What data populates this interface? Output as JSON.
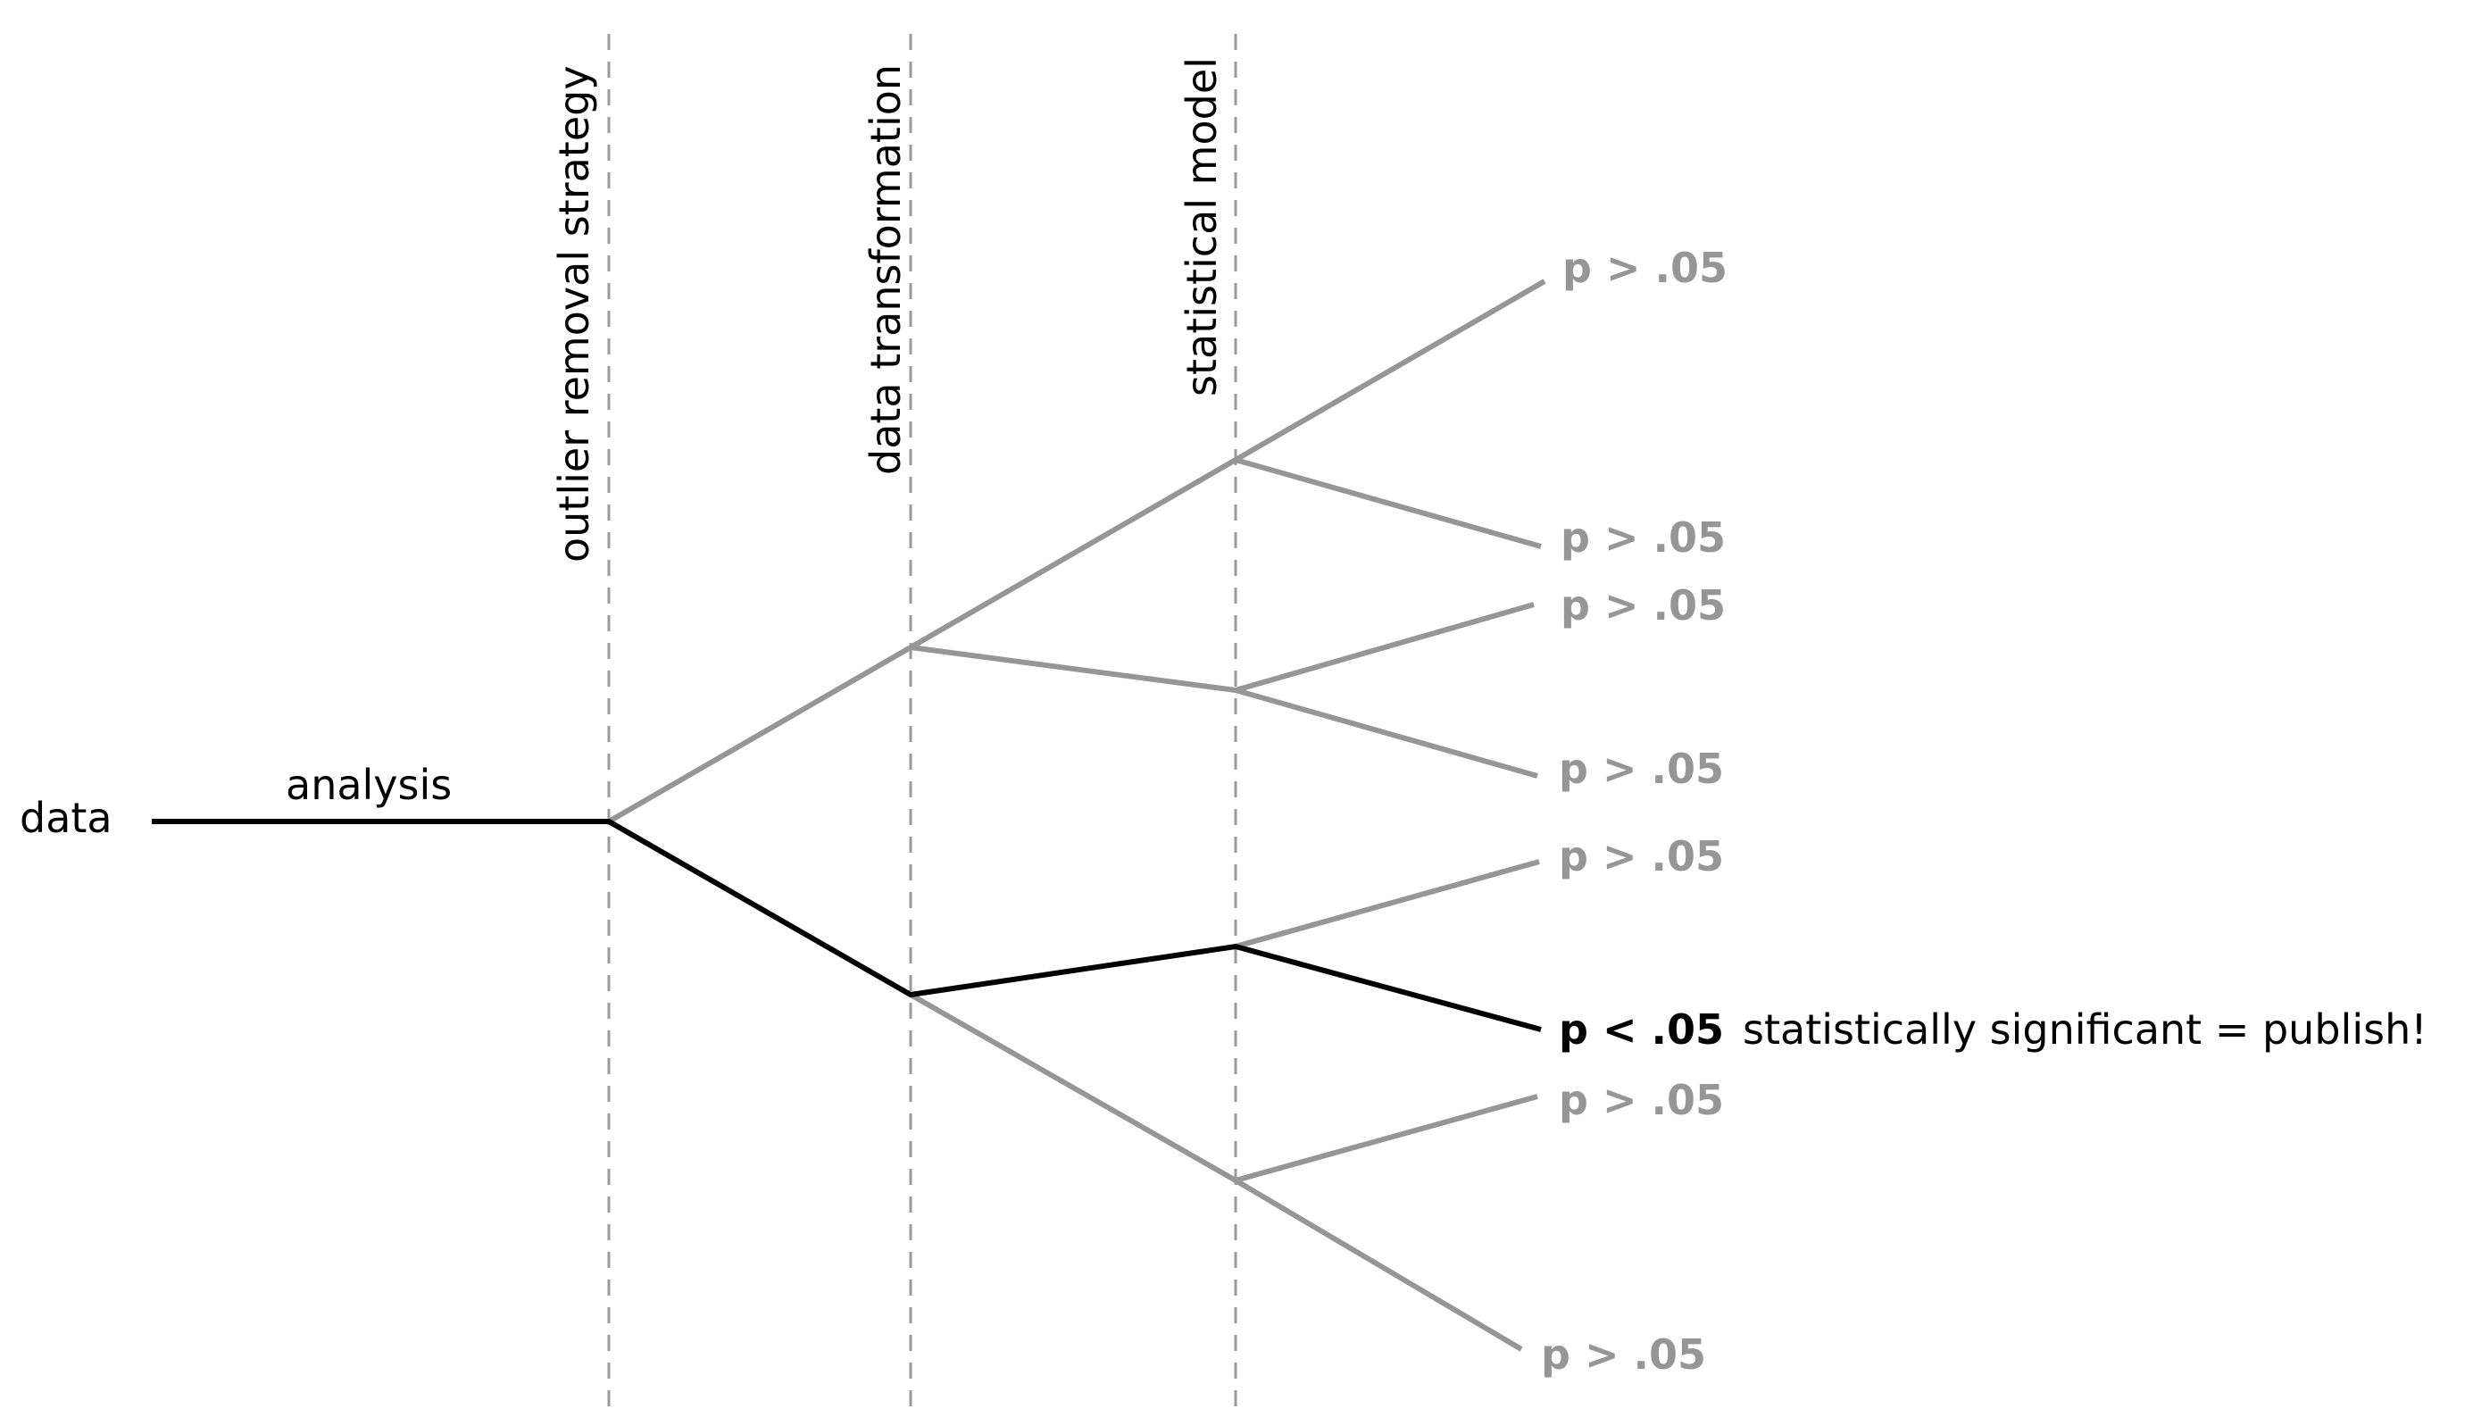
{
  "diagram": {
    "start_label": "data",
    "trunk_label": "analysis",
    "stages": [
      "outlier removal strategy",
      "data transformation",
      "statistical model"
    ],
    "outcomes": [
      {
        "label": "p > .05",
        "significant": false
      },
      {
        "label": "p > .05",
        "significant": false
      },
      {
        "label": "p > .05",
        "significant": false
      },
      {
        "label": "p > .05",
        "significant": false
      },
      {
        "label": "p > .05",
        "significant": false
      },
      {
        "label": "p < .05",
        "significant": true,
        "note": "statistically significant = publish!"
      },
      {
        "label": "p > .05",
        "significant": false
      },
      {
        "label": "p > .05",
        "significant": false
      }
    ],
    "colors": {
      "highlighted_path": "#000000",
      "other_paths": "#969696",
      "dividers": "#9a9a9a"
    }
  }
}
